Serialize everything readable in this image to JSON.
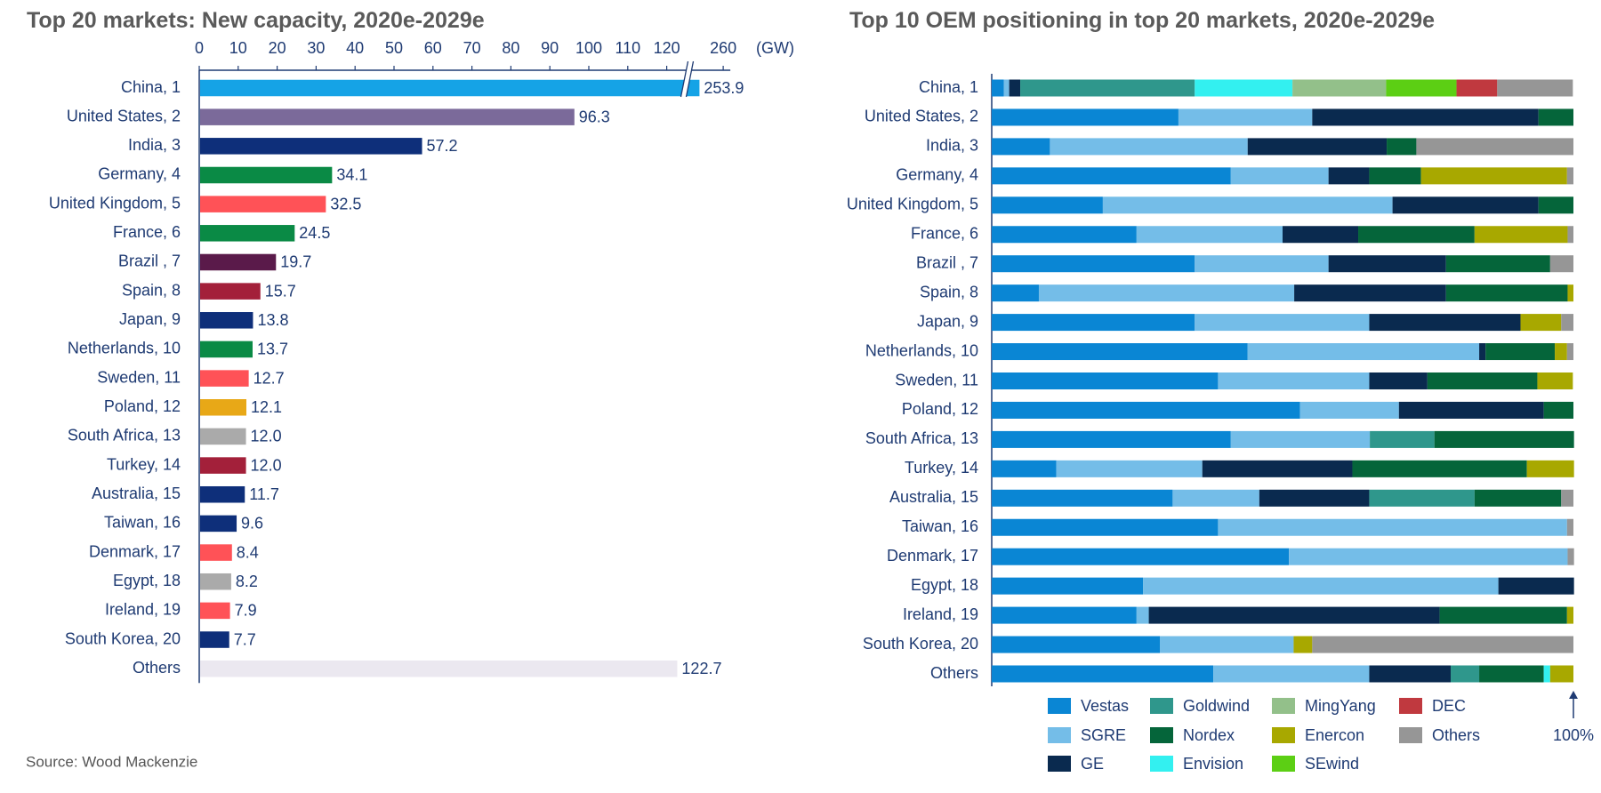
{
  "chart_data": [
    {
      "type": "bar",
      "title": "Top 20 markets: New capacity, 2020e-2029e",
      "categories": [
        "China, 1",
        "United States, 2",
        "India, 3",
        "Germany, 4",
        "United Kingdom, 5",
        "France, 6",
        "Brazil , 7",
        "Spain, 8",
        "Japan, 9",
        "Netherlands, 10",
        "Sweden, 11",
        "Poland, 12",
        "South Africa, 13",
        "Turkey, 14",
        "Australia, 15",
        "Taiwan, 16",
        "Denmark, 17",
        "Egypt, 18",
        "Ireland, 19",
        "South Korea, 20",
        "Others"
      ],
      "values": [
        253.9,
        96.3,
        57.2,
        34.1,
        32.5,
        24.5,
        19.7,
        15.7,
        13.8,
        13.7,
        12.7,
        12.1,
        12.0,
        12.0,
        11.7,
        9.6,
        8.4,
        8.2,
        7.9,
        7.7,
        122.7
      ],
      "value_labels": [
        "253.9",
        "96.3",
        "57.2",
        "34.1",
        "32.5",
        "24.5",
        "19.7",
        "15.7",
        "13.8",
        "13.7",
        "12.7",
        "12.1",
        "12.0",
        "12.0",
        "11.7",
        "9.6",
        "8.4",
        "8.2",
        "7.9",
        "7.7",
        "122.7"
      ],
      "colors": [
        "#15a3e6",
        "#7b6a9a",
        "#0e2f7a",
        "#0a8a45",
        "#ff5257",
        "#0a8a45",
        "#5a1a4a",
        "#a3203a",
        "#0e2f7a",
        "#0a8a45",
        "#ff5257",
        "#e8a817",
        "#aaaaaa",
        "#a3203a",
        "#0e2f7a",
        "#0e2f7a",
        "#ff5257",
        "#aaaaaa",
        "#ff5257",
        "#0e2f7a",
        "#ebe8f0"
      ],
      "x_unit": "(GW)",
      "xlim": [
        0,
        260
      ],
      "xticks": [
        0,
        10,
        20,
        30,
        40,
        50,
        60,
        70,
        80,
        90,
        100,
        110,
        120,
        260
      ],
      "source": "Source: Wood Mackenzie"
    },
    {
      "type": "stacked_bar",
      "title": "Top 10 OEM positioning in top 20 markets, 2020e-2029e",
      "categories": [
        "China, 1",
        "United States, 2",
        "India, 3",
        "Germany, 4",
        "United Kingdom, 5",
        "France, 6",
        "Brazil , 7",
        "Spain, 8",
        "Japan, 9",
        "Netherlands, 10",
        "Sweden, 11",
        "Poland, 12",
        "South Africa, 13",
        "Turkey, 14",
        "Australia, 15",
        "Taiwan, 16",
        "Denmark, 17",
        "Egypt, 18",
        "Ireland, 19",
        "South Korea, 20",
        "Others"
      ],
      "xlim": [
        0,
        100
      ],
      "xticks": [
        {
          "value": 100,
          "label": "100%"
        }
      ],
      "series": [
        {
          "name": "Vestas",
          "color": "#0a86d4",
          "values": [
            2.1,
            32.1,
            10.0,
            41.1,
            19.1,
            24.9,
            34.9,
            8.1,
            34.9,
            44.0,
            38.9,
            53.0,
            41.1,
            11.1,
            31.1,
            38.9,
            51.1,
            26.0,
            24.9,
            28.9,
            38.1
          ]
        },
        {
          "name": "SGRE",
          "color": "#74bde8",
          "values": [
            0.9,
            23.0,
            34.0,
            16.8,
            49.8,
            25.1,
            23.0,
            43.9,
            30.0,
            39.8,
            26.0,
            17.0,
            23.9,
            25.1,
            14.9,
            60.0,
            47.9,
            61.1,
            2.1,
            23.0,
            26.8
          ]
        },
        {
          "name": "GE",
          "color": "#0a2a4f",
          "values": [
            1.9,
            38.9,
            23.9,
            7.0,
            25.1,
            13.0,
            20.2,
            26.1,
            26.0,
            1.1,
            10.0,
            24.9,
            0,
            25.8,
            18.9,
            0,
            0,
            13.0,
            50.0,
            0,
            14.0
          ]
        },
        {
          "name": "Goldwind",
          "color": "#2f978c",
          "values": [
            30.0,
            0,
            0,
            0,
            0,
            0,
            0,
            0,
            0,
            0,
            0,
            0,
            11.1,
            0,
            18.1,
            0,
            0,
            0,
            0,
            0,
            4.9
          ]
        },
        {
          "name": "Nordex",
          "color": "#05653a",
          "values": [
            0,
            6.0,
            5.1,
            8.9,
            6.0,
            20.0,
            17.9,
            20.9,
            0,
            11.9,
            18.9,
            5.1,
            24.0,
            30.0,
            14.9,
            0,
            0,
            0,
            21.9,
            0,
            11.1
          ]
        },
        {
          "name": "Envision",
          "color": "#33f0f0",
          "values": [
            16.8,
            0,
            0,
            0,
            0,
            0,
            0,
            0,
            0,
            0,
            0,
            0,
            0,
            0,
            0,
            0,
            0,
            0,
            0,
            0,
            1.1
          ]
        },
        {
          "name": "MingYang",
          "color": "#93c08a",
          "values": [
            16.1,
            0,
            0,
            0,
            0,
            0,
            0,
            0,
            0,
            0,
            0,
            0,
            0,
            0,
            0,
            0,
            0,
            0,
            0,
            0,
            0
          ]
        },
        {
          "name": "Enercon",
          "color": "#a8a800",
          "values": [
            0,
            0,
            0,
            25.1,
            0,
            16.0,
            0,
            1.0,
            7.0,
            2.1,
            6.1,
            0,
            0,
            8.1,
            0,
            0,
            0,
            0,
            1.1,
            3.2,
            4.0
          ]
        },
        {
          "name": "SEwind",
          "color": "#5ccf14",
          "values": [
            12.1,
            0,
            0,
            0,
            0,
            0,
            0,
            0,
            0,
            0,
            0,
            0,
            0,
            0,
            0,
            0,
            0,
            0,
            0,
            0,
            0
          ]
        },
        {
          "name": "DEC",
          "color": "#c0393f",
          "values": [
            7.0,
            0,
            0,
            0,
            0,
            0,
            0,
            0,
            0,
            0,
            0,
            0,
            0,
            0,
            0,
            0,
            0,
            0,
            0,
            0,
            0
          ]
        },
        {
          "name": "Others",
          "color": "#969696",
          "values": [
            13.0,
            0,
            27.0,
            1.1,
            0,
            1.0,
            4.0,
            0,
            2.1,
            1.1,
            0,
            0,
            0,
            0,
            2.1,
            1.1,
            1.1,
            0,
            0,
            44.9,
            0
          ]
        }
      ]
    }
  ]
}
